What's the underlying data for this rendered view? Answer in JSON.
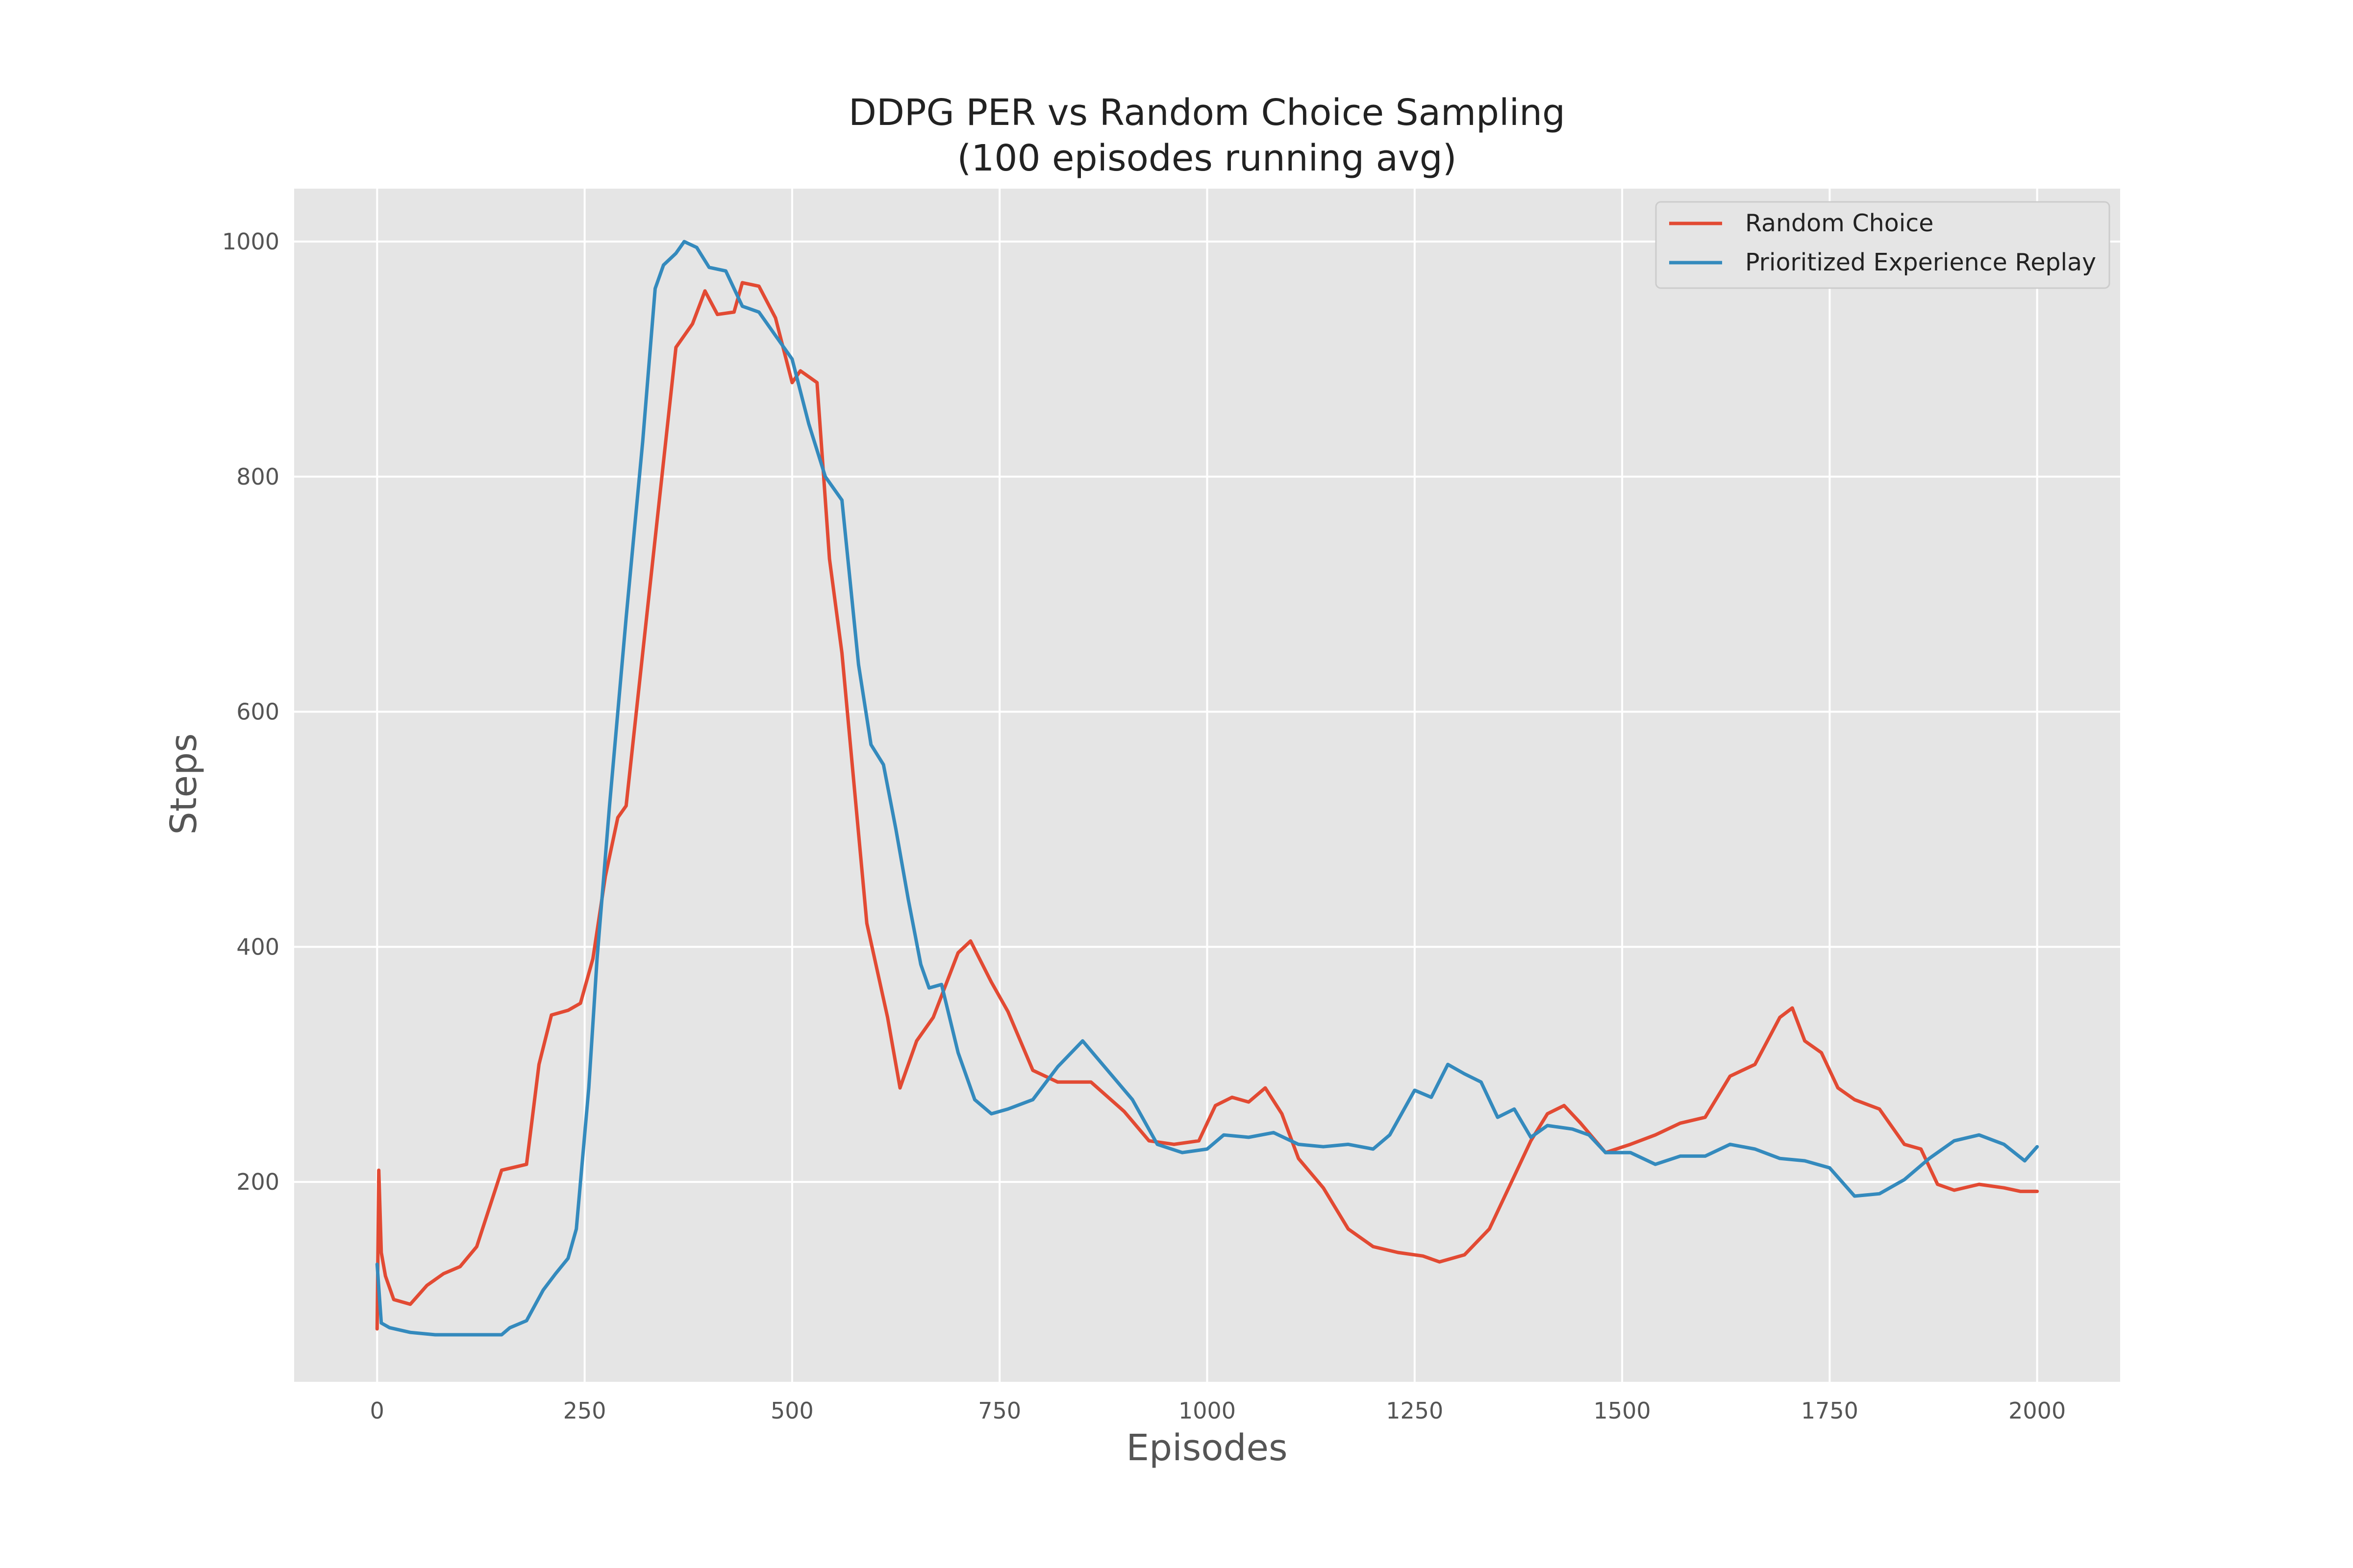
{
  "chart_data": {
    "type": "line",
    "title": "DDPG PER vs Random Choice Sampling",
    "subtitle": "(100 episodes running avg)",
    "xlabel": "Episodes",
    "ylabel": "Steps",
    "xlim": [
      -100,
      2100
    ],
    "ylim": [
      30,
      1045
    ],
    "xticks": [
      0,
      250,
      500,
      750,
      1000,
      1250,
      1500,
      1750,
      2000
    ],
    "yticks": [
      200,
      400,
      600,
      800,
      1000
    ],
    "grid": true,
    "legend_position": "top-right",
    "background": "#e5e5e5",
    "series": [
      {
        "name": "Random Choice",
        "color": "#e24a33",
        "points": [
          [
            0,
            75
          ],
          [
            2,
            210
          ],
          [
            5,
            140
          ],
          [
            10,
            120
          ],
          [
            20,
            100
          ],
          [
            40,
            96
          ],
          [
            60,
            112
          ],
          [
            80,
            122
          ],
          [
            100,
            128
          ],
          [
            120,
            145
          ],
          [
            150,
            210
          ],
          [
            180,
            215
          ],
          [
            195,
            300
          ],
          [
            210,
            342
          ],
          [
            230,
            346
          ],
          [
            245,
            352
          ],
          [
            260,
            390
          ],
          [
            275,
            460
          ],
          [
            290,
            510
          ],
          [
            300,
            520
          ],
          [
            320,
            650
          ],
          [
            340,
            780
          ],
          [
            360,
            910
          ],
          [
            380,
            930
          ],
          [
            395,
            958
          ],
          [
            410,
            938
          ],
          [
            430,
            940
          ],
          [
            440,
            965
          ],
          [
            460,
            962
          ],
          [
            480,
            935
          ],
          [
            500,
            880
          ],
          [
            510,
            890
          ],
          [
            530,
            880
          ],
          [
            545,
            730
          ],
          [
            560,
            650
          ],
          [
            590,
            420
          ],
          [
            615,
            340
          ],
          [
            630,
            280
          ],
          [
            650,
            320
          ],
          [
            670,
            340
          ],
          [
            700,
            395
          ],
          [
            715,
            405
          ],
          [
            740,
            370
          ],
          [
            760,
            345
          ],
          [
            790,
            295
          ],
          [
            820,
            285
          ],
          [
            860,
            285
          ],
          [
            900,
            260
          ],
          [
            930,
            235
          ],
          [
            960,
            232
          ],
          [
            990,
            235
          ],
          [
            1010,
            265
          ],
          [
            1030,
            272
          ],
          [
            1050,
            268
          ],
          [
            1070,
            280
          ],
          [
            1090,
            258
          ],
          [
            1110,
            220
          ],
          [
            1140,
            195
          ],
          [
            1170,
            160
          ],
          [
            1200,
            145
          ],
          [
            1230,
            140
          ],
          [
            1260,
            137
          ],
          [
            1280,
            132
          ],
          [
            1310,
            138
          ],
          [
            1340,
            160
          ],
          [
            1370,
            205
          ],
          [
            1390,
            235
          ],
          [
            1410,
            258
          ],
          [
            1430,
            265
          ],
          [
            1450,
            250
          ],
          [
            1480,
            225
          ],
          [
            1510,
            232
          ],
          [
            1540,
            240
          ],
          [
            1570,
            250
          ],
          [
            1600,
            255
          ],
          [
            1630,
            290
          ],
          [
            1660,
            300
          ],
          [
            1690,
            340
          ],
          [
            1705,
            348
          ],
          [
            1720,
            320
          ],
          [
            1740,
            310
          ],
          [
            1760,
            280
          ],
          [
            1780,
            270
          ],
          [
            1810,
            262
          ],
          [
            1840,
            232
          ],
          [
            1860,
            228
          ],
          [
            1880,
            198
          ],
          [
            1900,
            193
          ],
          [
            1930,
            198
          ],
          [
            1960,
            195
          ],
          [
            1980,
            192
          ],
          [
            2000,
            192
          ]
        ]
      },
      {
        "name": "Prioritized Experience Replay",
        "color": "#348abd",
        "points": [
          [
            0,
            130
          ],
          [
            5,
            80
          ],
          [
            15,
            76
          ],
          [
            40,
            72
          ],
          [
            70,
            70
          ],
          [
            100,
            70
          ],
          [
            130,
            70
          ],
          [
            150,
            70
          ],
          [
            160,
            76
          ],
          [
            180,
            82
          ],
          [
            200,
            108
          ],
          [
            215,
            122
          ],
          [
            230,
            135
          ],
          [
            240,
            160
          ],
          [
            255,
            280
          ],
          [
            265,
            390
          ],
          [
            280,
            520
          ],
          [
            300,
            680
          ],
          [
            320,
            830
          ],
          [
            335,
            960
          ],
          [
            345,
            980
          ],
          [
            360,
            990
          ],
          [
            370,
            1000
          ],
          [
            385,
            995
          ],
          [
            400,
            978
          ],
          [
            420,
            975
          ],
          [
            440,
            945
          ],
          [
            460,
            940
          ],
          [
            480,
            920
          ],
          [
            500,
            900
          ],
          [
            520,
            845
          ],
          [
            540,
            800
          ],
          [
            560,
            780
          ],
          [
            580,
            640
          ],
          [
            595,
            572
          ],
          [
            610,
            555
          ],
          [
            625,
            500
          ],
          [
            640,
            440
          ],
          [
            655,
            385
          ],
          [
            665,
            365
          ],
          [
            680,
            368
          ],
          [
            700,
            310
          ],
          [
            720,
            270
          ],
          [
            740,
            258
          ],
          [
            760,
            262
          ],
          [
            790,
            270
          ],
          [
            820,
            298
          ],
          [
            850,
            320
          ],
          [
            880,
            295
          ],
          [
            910,
            270
          ],
          [
            940,
            232
          ],
          [
            970,
            225
          ],
          [
            1000,
            228
          ],
          [
            1020,
            240
          ],
          [
            1050,
            238
          ],
          [
            1080,
            242
          ],
          [
            1110,
            232
          ],
          [
            1140,
            230
          ],
          [
            1170,
            232
          ],
          [
            1200,
            228
          ],
          [
            1220,
            240
          ],
          [
            1250,
            278
          ],
          [
            1270,
            272
          ],
          [
            1290,
            300
          ],
          [
            1310,
            292
          ],
          [
            1330,
            285
          ],
          [
            1350,
            255
          ],
          [
            1370,
            262
          ],
          [
            1390,
            238
          ],
          [
            1410,
            248
          ],
          [
            1440,
            245
          ],
          [
            1460,
            240
          ],
          [
            1480,
            225
          ],
          [
            1510,
            225
          ],
          [
            1540,
            215
          ],
          [
            1570,
            222
          ],
          [
            1600,
            222
          ],
          [
            1630,
            232
          ],
          [
            1660,
            228
          ],
          [
            1690,
            220
          ],
          [
            1720,
            218
          ],
          [
            1750,
            212
          ],
          [
            1780,
            188
          ],
          [
            1810,
            190
          ],
          [
            1840,
            202
          ],
          [
            1870,
            220
          ],
          [
            1900,
            235
          ],
          [
            1930,
            240
          ],
          [
            1960,
            232
          ],
          [
            1985,
            218
          ],
          [
            2000,
            230
          ]
        ]
      }
    ]
  }
}
